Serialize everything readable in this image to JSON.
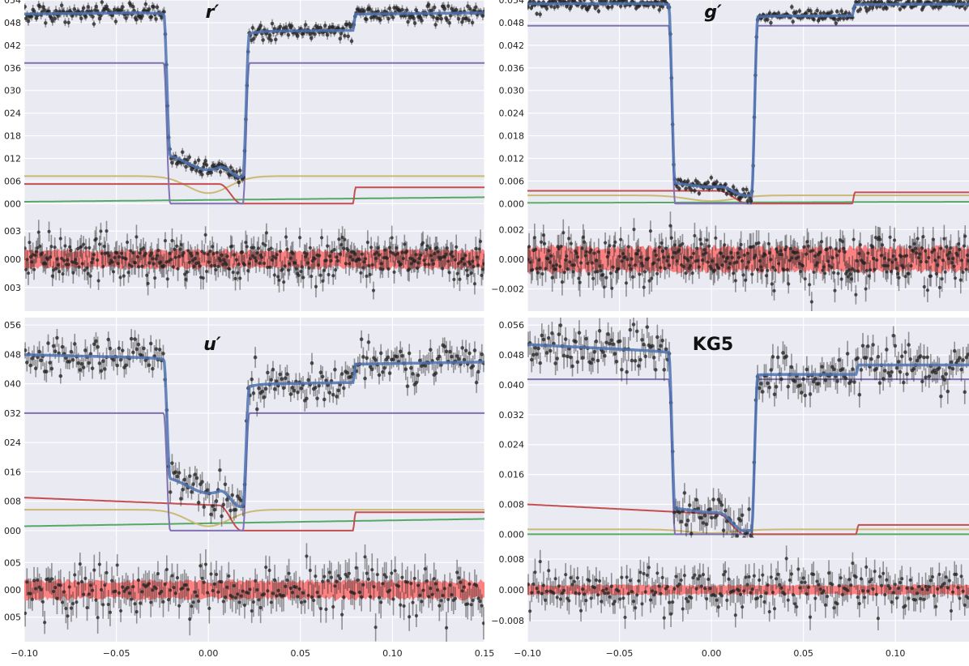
{
  "chart_data": [
    {
      "type": "line",
      "title": "r′",
      "title_italic": true,
      "xlim": [
        -0.1,
        0.15
      ],
      "xticks": [
        "−0.10",
        "−0.05",
        "0.00",
        "0.05",
        "0.10",
        "0.15"
      ],
      "xtick_values": [
        -0.1,
        -0.05,
        0.0,
        0.05,
        0.1,
        0.15
      ],
      "show_xtick_labels": false,
      "top_panel": {
        "ylim": [
          -0.001,
          0.054
        ],
        "yticks": [
          "054",
          "048",
          "042",
          "036",
          "030",
          "024",
          "018",
          "012",
          "006",
          "000"
        ],
        "ytick_values": [
          0.054,
          0.048,
          0.042,
          0.036,
          0.03,
          0.024,
          0.018,
          0.012,
          0.006,
          0.0
        ]
      },
      "bottom_panel": {
        "ylim": [
          -0.0055,
          0.0055
        ],
        "yticks": [
          "003",
          "000",
          "003"
        ],
        "ytick_values": [
          0.003,
          0.0,
          -0.003
        ],
        "residual_scatter": 0.0011,
        "band_halfwidth": 0.0009
      },
      "eclipse": {
        "ingress": -0.0225,
        "egress": 0.0205,
        "ramp_width": 0.0035,
        "secondary_start": 0.007,
        "secondary_end": 0.018,
        "secondary_ramp": 0.0025
      },
      "series": [
        {
          "kind": "disk",
          "color": "#8172b2",
          "plateau": 0.0373
        },
        {
          "kind": "hotspot",
          "color": "#c44e52",
          "level_pre": 0.0052,
          "level_post": 0.0043,
          "hidden_from": 0.006,
          "reappear": 0.08
        },
        {
          "kind": "white_dwarf",
          "color": "#ccb974",
          "level": 0.0073,
          "dip": 0.0045,
          "dip_width": 0.035
        },
        {
          "kind": "donor",
          "color": "#55a868",
          "level": 0.0005,
          "slope": 0.0012
        },
        {
          "kind": "model",
          "color": "#4c72b0"
        },
        {
          "kind": "data",
          "color": "#222222",
          "n": 400,
          "noise": 0.0011
        }
      ]
    },
    {
      "type": "line",
      "title": "g′",
      "title_italic": true,
      "xlim": [
        -0.1,
        0.14
      ],
      "xticks": [
        "−0.10",
        "−0.05",
        "0.00",
        "0.05",
        "0.10"
      ],
      "xtick_values": [
        -0.1,
        -0.05,
        0.0,
        0.05,
        0.1
      ],
      "show_xtick_labels": false,
      "top_panel": {
        "ylim": [
          -0.001,
          0.054
        ],
        "yticks": [
          "0.054",
          "0.048",
          "0.042",
          "0.036",
          "0.030",
          "0.024",
          "0.018",
          "0.012",
          "0.006",
          "0.000"
        ],
        "ytick_values": [
          0.054,
          0.048,
          0.042,
          0.036,
          0.03,
          0.024,
          0.018,
          0.012,
          0.006,
          0.0
        ]
      },
      "bottom_panel": {
        "ylim": [
          -0.0035,
          0.0035
        ],
        "yticks": [
          "0.002",
          "0.000",
          "−0.002"
        ],
        "ytick_values": [
          0.002,
          0.0,
          -0.002
        ],
        "residual_scatter": 0.0008,
        "band_halfwidth": 0.0008
      },
      "eclipse": {
        "ingress": -0.0215,
        "egress": 0.0235,
        "ramp_width": 0.0035,
        "secondary_start": 0.0,
        "secondary_end": 0.02,
        "secondary_ramp": 0.004
      },
      "series": [
        {
          "kind": "disk",
          "color": "#8172b2",
          "plateau": 0.0472
        },
        {
          "kind": "hotspot",
          "color": "#c44e52",
          "level_pre": 0.0034,
          "level_post": 0.003,
          "hidden_from": 0.004,
          "reappear": 0.078
        },
        {
          "kind": "white_dwarf",
          "color": "#ccb974",
          "level": 0.0022,
          "dip": 0.0015,
          "dip_width": 0.04
        },
        {
          "kind": "donor",
          "color": "#55a868",
          "level": 0.0002,
          "slope": 0.0003
        },
        {
          "kind": "model",
          "color": "#4c72b0"
        },
        {
          "kind": "data",
          "color": "#222222",
          "n": 400,
          "noise": 0.0008
        }
      ]
    },
    {
      "type": "line",
      "title": "u′",
      "title_italic": true,
      "xlim": [
        -0.1,
        0.15
      ],
      "xticks": [
        "−0.10",
        "−0.05",
        "0.00",
        "0.05",
        "0.10",
        "0.15"
      ],
      "xtick_values": [
        -0.1,
        -0.05,
        0.0,
        0.05,
        0.1,
        0.15
      ],
      "show_xtick_labels": true,
      "top_panel": {
        "ylim": [
          -0.002,
          0.058
        ],
        "yticks": [
          "056",
          "048",
          "040",
          "032",
          "024",
          "016",
          "008",
          "000"
        ],
        "ytick_values": [
          0.056,
          0.048,
          0.04,
          0.032,
          0.024,
          0.016,
          0.008,
          0.0
        ]
      },
      "bottom_panel": {
        "ylim": [
          -0.0095,
          0.0095
        ],
        "yticks": [
          "005",
          "000",
          "005"
        ],
        "ytick_values": [
          0.005,
          0.0,
          -0.005
        ],
        "residual_scatter": 0.0025,
        "band_halfwidth": 0.0016
      },
      "eclipse": {
        "ingress": -0.0225,
        "egress": 0.0205,
        "ramp_width": 0.0035,
        "secondary_start": 0.007,
        "secondary_end": 0.018,
        "secondary_ramp": 0.0025
      },
      "series": [
        {
          "kind": "disk",
          "color": "#8172b2",
          "plateau": 0.032
        },
        {
          "kind": "hotspot",
          "color": "#c44e52",
          "level_pre": 0.009,
          "level_post": 0.005,
          "hidden_from": 0.006,
          "reappear": 0.08,
          "pre_slope": -0.002
        },
        {
          "kind": "white_dwarf",
          "color": "#ccb974",
          "level": 0.0057,
          "dip": 0.0045,
          "dip_width": 0.035
        },
        {
          "kind": "donor",
          "color": "#55a868",
          "level": 0.0012,
          "slope": 0.002
        },
        {
          "kind": "model",
          "color": "#4c72b0"
        },
        {
          "kind": "data",
          "color": "#222222",
          "n": 260,
          "noise": 0.0025
        }
      ]
    },
    {
      "type": "line",
      "title": "KG5",
      "title_italic": false,
      "xlim": [
        -0.1,
        0.14
      ],
      "xticks": [
        "−0.10",
        "−0.05",
        "0.00",
        "0.05",
        "0.10"
      ],
      "xtick_values": [
        -0.1,
        -0.05,
        0.0,
        0.05,
        0.1
      ],
      "show_xtick_labels": true,
      "top_panel": {
        "ylim": [
          -0.001,
          0.058
        ],
        "yticks": [
          "0.056",
          "0.048",
          "0.040",
          "0.032",
          "0.024",
          "0.016",
          "0.008",
          "0.000"
        ],
        "ytick_values": [
          0.056,
          0.048,
          0.04,
          0.032,
          0.024,
          0.016,
          0.008,
          0.0
        ]
      },
      "bottom_panel": {
        "ylim": [
          -0.0135,
          0.0135
        ],
        "yticks": [
          "0.008",
          "0.000",
          "−0.008"
        ],
        "ytick_values": [
          0.008,
          0.0,
          -0.008
        ],
        "residual_scatter": 0.003,
        "band_halfwidth": 0.0012
      },
      "eclipse": {
        "ingress": -0.0215,
        "egress": 0.0235,
        "ramp_width": 0.0035,
        "secondary_start": 0.0,
        "secondary_end": 0.018,
        "secondary_ramp": 0.004
      },
      "series": [
        {
          "kind": "disk",
          "color": "#8172b2",
          "plateau": 0.0415
        },
        {
          "kind": "hotspot",
          "color": "#c44e52",
          "level_pre": 0.008,
          "level_post": 0.0025,
          "hidden_from": 0.004,
          "reappear": 0.08,
          "pre_slope": -0.0025
        },
        {
          "kind": "white_dwarf",
          "color": "#ccb974",
          "level": 0.0013,
          "dip": 0.001,
          "dip_width": 0.04
        },
        {
          "kind": "donor",
          "color": "#55a868",
          "level": 0.0,
          "slope": 0.0
        },
        {
          "kind": "model",
          "color": "#4c72b0"
        },
        {
          "kind": "data",
          "color": "#222222",
          "n": 260,
          "noise": 0.003
        }
      ]
    }
  ],
  "style": {
    "panel_background": "#eaeaf2",
    "grid_color": "#ffffff",
    "residual_band_color": "#ff6f6f",
    "point_color": "#222222"
  }
}
